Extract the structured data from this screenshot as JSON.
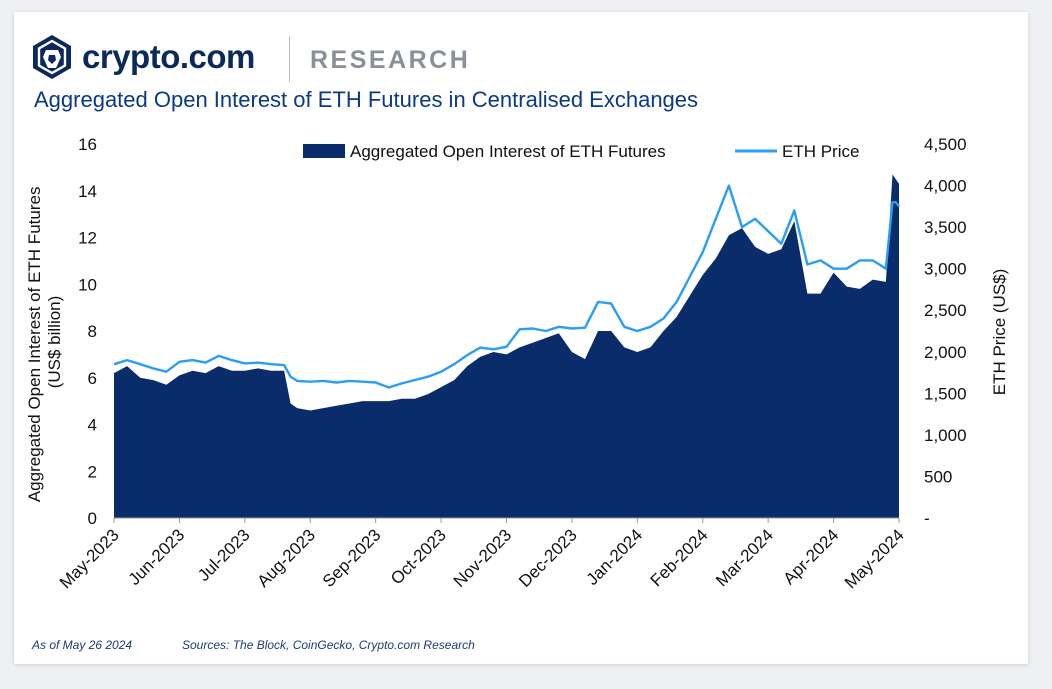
{
  "header": {
    "brand": "crypto.com",
    "section": "RESEARCH",
    "title": "Aggregated Open Interest of ETH Futures in Centralised Exchanges"
  },
  "footer": {
    "as_of": "As of May 26 2024",
    "sources": "Sources: The Block, CoinGecko, Crypto.com Research"
  },
  "colors": {
    "area": "#0b2c6b",
    "line": "#2a9df4",
    "title": "#0b3a85"
  },
  "chart_data": {
    "type": "area",
    "ylabel": "Aggregated Open Interest of ETH Futures",
    "ylabel_unit": "(US$ billion)",
    "y2label": "ETH Price (US$)",
    "ylim": [
      0,
      16
    ],
    "y2lim": [
      0,
      4500
    ],
    "y_ticks": [
      "0",
      "2",
      "4",
      "6",
      "8",
      "10",
      "12",
      "14",
      "16"
    ],
    "y2_ticks": [
      "-",
      "500",
      "1,000",
      "1,500",
      "2,000",
      "2,500",
      "3,000",
      "3,500",
      "4,000",
      "4,500"
    ],
    "x_ticks": [
      "May-2023",
      "Jun-2023",
      "Jul-2023",
      "Aug-2023",
      "Sep-2023",
      "Oct-2023",
      "Nov-2023",
      "Dec-2023",
      "Jan-2024",
      "Feb-2024",
      "Mar-2024",
      "Apr-2024",
      "May-2024"
    ],
    "legend_position": "top",
    "series": [
      {
        "name": "Aggregated Open Interest of ETH Futures",
        "axis": "left",
        "x": [
          0,
          0.2,
          0.4,
          0.6,
          0.8,
          1,
          1.2,
          1.4,
          1.6,
          1.8,
          2,
          2.2,
          2.4,
          2.6,
          2.7,
          2.8,
          3,
          3.2,
          3.4,
          3.6,
          3.8,
          4,
          4.2,
          4.4,
          4.6,
          4.8,
          5,
          5.2,
          5.4,
          5.6,
          5.8,
          6,
          6.2,
          6.4,
          6.6,
          6.8,
          7,
          7.2,
          7.4,
          7.6,
          7.8,
          8,
          8.2,
          8.4,
          8.6,
          8.8,
          9,
          9.2,
          9.4,
          9.6,
          9.8,
          10,
          10.2,
          10.4,
          10.6,
          10.8,
          11,
          11.2,
          11.4,
          11.6,
          11.8,
          11.9,
          11.95,
          12
        ],
        "values": [
          6.2,
          6.5,
          6.0,
          5.9,
          5.7,
          6.1,
          6.3,
          6.2,
          6.5,
          6.3,
          6.3,
          6.4,
          6.3,
          6.3,
          4.9,
          4.7,
          4.6,
          4.7,
          4.8,
          4.9,
          5.0,
          5.0,
          5.0,
          5.1,
          5.1,
          5.3,
          5.6,
          5.9,
          6.5,
          6.9,
          7.1,
          7.0,
          7.3,
          7.5,
          7.7,
          7.9,
          7.1,
          6.8,
          8.0,
          8.0,
          7.3,
          7.1,
          7.3,
          8.0,
          8.6,
          9.5,
          10.4,
          11.1,
          12.1,
          12.4,
          11.6,
          11.3,
          11.5,
          12.7,
          9.6,
          9.6,
          10.5,
          9.9,
          9.8,
          10.2,
          10.1,
          14.7,
          14.5,
          14.3
        ]
      },
      {
        "name": "ETH Price",
        "axis": "right",
        "x": [
          0,
          0.2,
          0.4,
          0.6,
          0.8,
          1,
          1.2,
          1.4,
          1.6,
          1.8,
          2,
          2.2,
          2.4,
          2.6,
          2.7,
          2.8,
          3,
          3.2,
          3.4,
          3.6,
          3.8,
          4,
          4.2,
          4.4,
          4.6,
          4.8,
          5,
          5.2,
          5.4,
          5.6,
          5.8,
          6,
          6.2,
          6.4,
          6.6,
          6.8,
          7,
          7.2,
          7.4,
          7.6,
          7.8,
          8,
          8.2,
          8.4,
          8.6,
          8.8,
          9,
          9.2,
          9.4,
          9.6,
          9.8,
          10,
          10.2,
          10.4,
          10.6,
          10.8,
          11,
          11.2,
          11.4,
          11.6,
          11.8,
          11.9,
          11.95,
          12
        ],
        "values": [
          1850,
          1900,
          1850,
          1800,
          1760,
          1880,
          1900,
          1870,
          1950,
          1900,
          1860,
          1870,
          1850,
          1840,
          1700,
          1650,
          1640,
          1650,
          1630,
          1650,
          1640,
          1630,
          1570,
          1620,
          1660,
          1700,
          1760,
          1850,
          1960,
          2050,
          2030,
          2060,
          2270,
          2280,
          2250,
          2300,
          2280,
          2290,
          2600,
          2580,
          2300,
          2250,
          2300,
          2400,
          2600,
          2900,
          3200,
          3600,
          4000,
          3500,
          3600,
          3450,
          3300,
          3700,
          3050,
          3100,
          3000,
          3000,
          3100,
          3100,
          3000,
          3800,
          3800,
          3750
        ]
      }
    ]
  }
}
